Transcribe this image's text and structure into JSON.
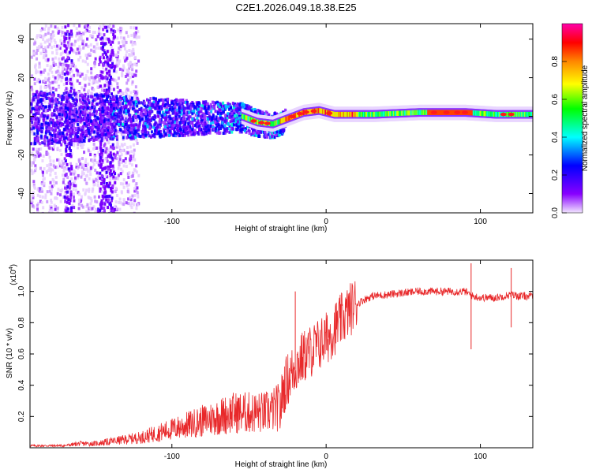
{
  "title": "C2E1.2026.049.18.38.E25",
  "chart_data": [
    {
      "type": "heatmap",
      "name": "spectrogram",
      "xlabel": "Height of straight line (km)",
      "ylabel": "Frequency (Hz)",
      "xlim": [
        -192,
        134
      ],
      "ylim": [
        -50,
        48
      ],
      "x_ticks": [
        -100,
        0,
        100
      ],
      "y_ticks": [
        -40,
        -20,
        0,
        20,
        40
      ],
      "colorbar": {
        "label": "Normalized spectral amplitude",
        "range": [
          0,
          1
        ],
        "ticks": [
          0.0,
          0.2,
          0.4,
          0.6,
          0.8
        ],
        "tick_labels": [
          "0.0",
          "0.2",
          "0.4",
          "0.6",
          "0.8"
        ],
        "colors": [
          "#f2e6ff",
          "#8800ff",
          "#0000ff",
          "#00ffff",
          "#00ff00",
          "#ffff00",
          "#ff8800",
          "#ff0000",
          "#ff00aa"
        ]
      },
      "ridge": [
        {
          "x": -55,
          "y": 0
        },
        {
          "x": -45,
          "y": -3
        },
        {
          "x": -35,
          "y": -4
        },
        {
          "x": -25,
          "y": -1
        },
        {
          "x": -15,
          "y": 2
        },
        {
          "x": -5,
          "y": 3
        },
        {
          "x": 5,
          "y": 1
        },
        {
          "x": 30,
          "y": 1
        },
        {
          "x": 60,
          "y": 2
        },
        {
          "x": 90,
          "y": 2
        },
        {
          "x": 110,
          "y": 1
        },
        {
          "x": 134,
          "y": 1
        }
      ]
    },
    {
      "type": "line",
      "name": "snr",
      "xlabel": "Height of straight line (km)",
      "ylabel": "SNR (10 * v/v)",
      "y_multiplier": "(x10",
      "y_multiplier_exp": "4",
      "y_multiplier_close": ")",
      "xlim": [
        -192,
        134
      ],
      "ylim": [
        0,
        1.2
      ],
      "x_ticks": [
        -100,
        0,
        100
      ],
      "y_ticks": [
        0.2,
        0.4,
        0.6,
        0.8,
        1.0
      ],
      "y_tick_labels": [
        "0.2",
        "0.4",
        "0.6",
        "0.8",
        "1.0"
      ],
      "color": "#e8282a",
      "series": {
        "x": [
          -192,
          -180,
          -170,
          -160,
          -150,
          -140,
          -130,
          -120,
          -110,
          -100,
          -90,
          -80,
          -70,
          -60,
          -50,
          -40,
          -35,
          -30,
          -28,
          -25,
          -20,
          -15,
          -10,
          -5,
          0,
          5,
          10,
          15,
          20,
          25,
          30,
          40,
          50,
          60,
          70,
          80,
          90,
          95,
          100,
          110,
          115,
          120,
          125,
          134
        ],
        "y": [
          0.01,
          0.01,
          0.01,
          0.02,
          0.02,
          0.03,
          0.04,
          0.05,
          0.07,
          0.09,
          0.11,
          0.13,
          0.15,
          0.17,
          0.17,
          0.17,
          0.18,
          0.2,
          0.35,
          0.42,
          0.5,
          0.56,
          0.6,
          0.64,
          0.68,
          0.74,
          0.8,
          0.86,
          0.92,
          0.95,
          0.97,
          0.98,
          0.99,
          1.0,
          1.0,
          1.0,
          1.0,
          0.97,
          0.96,
          0.96,
          0.97,
          0.98,
          0.97,
          0.97
        ]
      },
      "annotation_spikes": [
        {
          "x": -20,
          "y": 1.0
        },
        {
          "x": 94,
          "y": 1.18
        },
        {
          "x": 94,
          "y": 0.63
        },
        {
          "x": 120,
          "y": 1.15
        },
        {
          "x": 120,
          "y": 0.77
        }
      ]
    }
  ]
}
